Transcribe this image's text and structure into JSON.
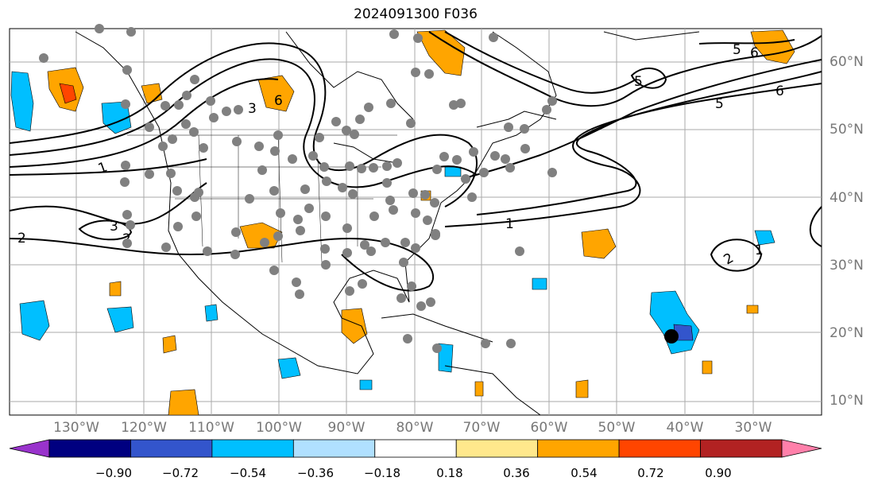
{
  "title": "2024091300 F036",
  "lat_labels": [
    "60°N",
    "50°N",
    "40°N",
    "30°N",
    "20°N",
    "10°N"
  ],
  "lon_labels": [
    "130°W",
    "120°W",
    "110°W",
    "100°W",
    "90°W",
    "80°W",
    "70°W",
    "60°W",
    "50°W",
    "40°W",
    "30°W"
  ],
  "colorbar": {
    "tick_labels": [
      "−0.90",
      "−0.72",
      "−0.54",
      "−0.36",
      "−0.18",
      "0.18",
      "0.36",
      "0.54",
      "0.72",
      "0.90"
    ],
    "colors": [
      "#9933cc",
      "#000080",
      "#3355cc",
      "#00bfff",
      "#b0e0ff",
      "#ffffff",
      "#ffe88c",
      "#ffa500",
      "#ff4500",
      "#b22222",
      "#ff80aa"
    ]
  },
  "contour_labels": [
    "1",
    "2",
    "3",
    "5",
    "6"
  ],
  "storm_marker": "tropical-cyclone-position"
}
